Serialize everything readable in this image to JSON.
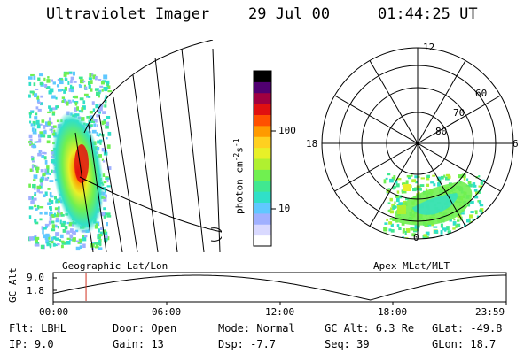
{
  "header": {
    "instrument": "Ultraviolet Imager",
    "date": "29 Jul 00",
    "time": "01:44:25 UT"
  },
  "colorbar": {
    "unit_label": "photon cm",
    "unit_sup1": "-2",
    "unit_mid": "s",
    "unit_sup2": "-1",
    "ticks": [
      {
        "label": "100",
        "value": 100
      },
      {
        "label": "10",
        "value": 10
      }
    ],
    "colors": [
      "#ffffff",
      "#d9d9ff",
      "#a0b0ff",
      "#60c8ff",
      "#30e0c8",
      "#40e890",
      "#70f050",
      "#b0f030",
      "#e8f028",
      "#ffd020",
      "#ff9a00",
      "#ff5000",
      "#e01010",
      "#a00040",
      "#500070",
      "#000000"
    ]
  },
  "left_panel": {
    "projection_label": "Geographic Lat/Lon"
  },
  "polar": {
    "projection_label": "Apex MLat/MLT",
    "mlt_labels": {
      "top": "12",
      "left": "18",
      "right": "6",
      "bottom": "0"
    },
    "lat_labels": [
      "60",
      "70",
      "80"
    ]
  },
  "timeline": {
    "y_axis_label": "GC Alt",
    "y_ticks": [
      "9.0",
      "1.8"
    ],
    "x_ticks": [
      "00:00",
      "06:00",
      "12:00",
      "18:00",
      "23:59"
    ],
    "current_time_hours": 1.74
  },
  "info": {
    "filter": "Flt: LBHL",
    "ip": "IP:  9.0",
    "door": "Door: Open",
    "gain": "Gain: 13",
    "mode": "Mode: Normal",
    "dsp": "Dsp:   -7.7",
    "gc_alt": "GC Alt: 6.3 Re",
    "seq": "Seq: 39",
    "glat": "GLat: -49.8",
    "glon": "GLon:  18.7"
  }
}
